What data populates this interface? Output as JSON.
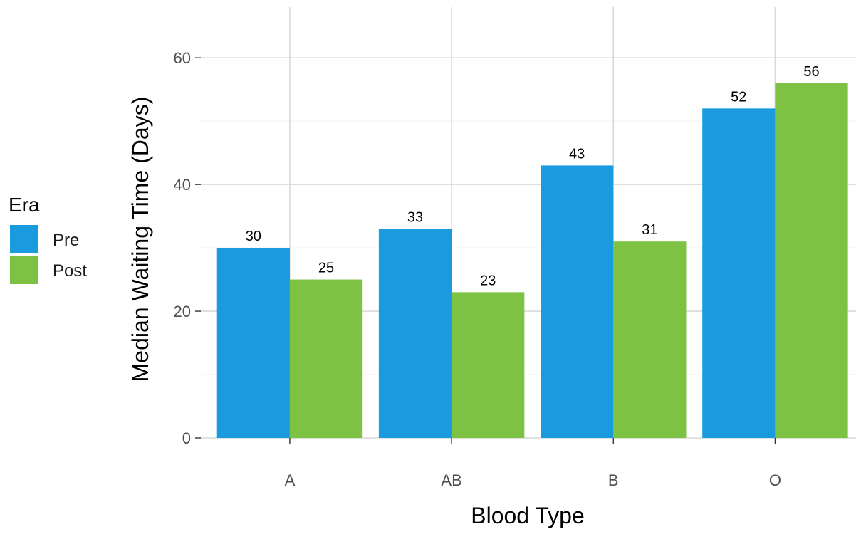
{
  "chart_data": {
    "type": "bar",
    "categories": [
      "A",
      "AB",
      "B",
      "O"
    ],
    "series": [
      {
        "name": "Pre",
        "color": "#1a9be0",
        "values": [
          30,
          33,
          43,
          52
        ]
      },
      {
        "name": "Post",
        "color": "#7dc242",
        "values": [
          25,
          23,
          31,
          56
        ]
      }
    ],
    "xlabel": "Blood Type",
    "ylabel": "Median Waiting Time (Days)",
    "ylim": [
      0,
      68
    ],
    "yticks": [
      0,
      20,
      40,
      60
    ],
    "legend": {
      "title": "Era",
      "placement": "left"
    },
    "grid": true,
    "data_labels": true
  }
}
